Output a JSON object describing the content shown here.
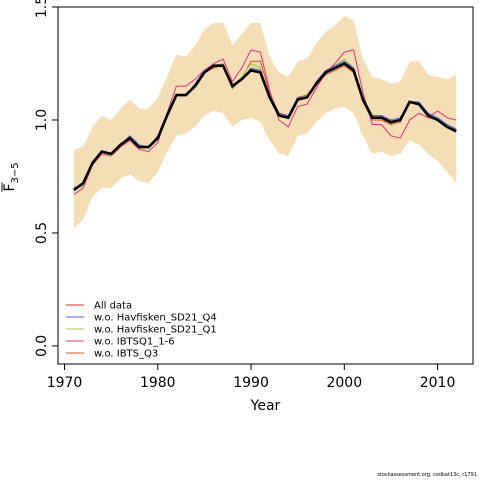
{
  "chart_data": {
    "type": "line",
    "xlabel": "Year",
    "ylabel_main": "F",
    "ylabel_sub": "3−5",
    "xlim": [
      1969.3,
      2013.8
    ],
    "ylim": [
      -0.08,
      1.5
    ],
    "xticks": [
      1970,
      1980,
      1990,
      2000,
      2010
    ],
    "yticks": [
      0.0,
      0.5,
      1.0,
      1.5
    ],
    "ytick_labels": [
      "0.0",
      "0.5",
      "1.0",
      "1.5"
    ],
    "x": [
      1971,
      1972,
      1973,
      1974,
      1975,
      1976,
      1977,
      1978,
      1979,
      1980,
      1981,
      1982,
      1983,
      1984,
      1985,
      1986,
      1987,
      1988,
      1989,
      1990,
      1991,
      1992,
      1993,
      1994,
      1995,
      1996,
      1997,
      1998,
      1999,
      2000,
      2001,
      2002,
      2003,
      2004,
      2005,
      2006,
      2007,
      2008,
      2009,
      2010,
      2011,
      2012
    ],
    "band": {
      "color": "#F5DEB3",
      "lower": [
        0.52,
        0.56,
        0.66,
        0.7,
        0.7,
        0.74,
        0.76,
        0.73,
        0.72,
        0.77,
        0.86,
        0.93,
        0.94,
        0.97,
        1.02,
        1.04,
        1.03,
        0.97,
        1.0,
        1.01,
        0.99,
        0.91,
        0.85,
        0.84,
        0.93,
        0.94,
        0.99,
        1.03,
        1.05,
        1.06,
        1.03,
        0.93,
        0.85,
        0.86,
        0.84,
        0.85,
        0.91,
        0.89,
        0.85,
        0.82,
        0.77,
        0.72
      ],
      "upper": [
        0.87,
        0.88,
        0.97,
        1.02,
        1.0,
        1.05,
        1.09,
        1.05,
        1.05,
        1.1,
        1.19,
        1.29,
        1.28,
        1.33,
        1.4,
        1.43,
        1.43,
        1.33,
        1.38,
        1.43,
        1.43,
        1.28,
        1.21,
        1.19,
        1.26,
        1.27,
        1.34,
        1.39,
        1.42,
        1.46,
        1.44,
        1.27,
        1.19,
        1.18,
        1.16,
        1.17,
        1.26,
        1.26,
        1.2,
        1.19,
        1.18,
        1.2
      ]
    },
    "main": {
      "color": "#000000",
      "values": [
        0.69,
        0.72,
        0.81,
        0.86,
        0.85,
        0.89,
        0.92,
        0.88,
        0.88,
        0.92,
        1.02,
        1.11,
        1.11,
        1.15,
        1.21,
        1.24,
        1.24,
        1.15,
        1.18,
        1.22,
        1.21,
        1.1,
        1.02,
        1.01,
        1.09,
        1.1,
        1.16,
        1.21,
        1.23,
        1.25,
        1.22,
        1.09,
        1.01,
        1.01,
        0.99,
        1.0,
        1.08,
        1.07,
        1.02,
        1.0,
        0.97,
        0.95
      ]
    },
    "series": [
      {
        "name": "All data",
        "color": "#E03030",
        "values": [
          0.69,
          0.72,
          0.81,
          0.86,
          0.85,
          0.89,
          0.92,
          0.88,
          0.88,
          0.92,
          1.02,
          1.11,
          1.11,
          1.15,
          1.21,
          1.24,
          1.24,
          1.15,
          1.18,
          1.22,
          1.21,
          1.1,
          1.02,
          1.01,
          1.09,
          1.1,
          1.16,
          1.21,
          1.23,
          1.25,
          1.22,
          1.09,
          1.01,
          1.01,
          0.99,
          1.0,
          1.08,
          1.07,
          1.02,
          1.0,
          0.97,
          0.95
        ]
      },
      {
        "name": "w.o. Havfisken_SD21_Q4",
        "color": "#5B5BE0",
        "values": [
          0.7,
          0.72,
          0.81,
          0.86,
          0.85,
          0.89,
          0.93,
          0.89,
          0.88,
          0.93,
          1.03,
          1.11,
          1.11,
          1.16,
          1.22,
          1.24,
          1.24,
          1.15,
          1.18,
          1.23,
          1.22,
          1.11,
          1.03,
          1.02,
          1.1,
          1.1,
          1.17,
          1.22,
          1.24,
          1.26,
          1.23,
          1.1,
          1.02,
          1.02,
          1.0,
          1.01,
          1.08,
          1.08,
          1.03,
          1.01,
          0.98,
          0.96
        ]
      },
      {
        "name": "w.o. Havfisken_SD21_Q1",
        "color": "#99CC33",
        "values": [
          0.69,
          0.71,
          0.81,
          0.86,
          0.84,
          0.89,
          0.92,
          0.88,
          0.88,
          0.92,
          1.02,
          1.11,
          1.11,
          1.15,
          1.21,
          1.24,
          1.25,
          1.15,
          1.19,
          1.25,
          1.23,
          1.1,
          1.02,
          1.01,
          1.09,
          1.1,
          1.16,
          1.21,
          1.24,
          1.27,
          1.23,
          1.09,
          1.01,
          1.01,
          0.99,
          1.0,
          1.08,
          1.07,
          1.02,
          1.01,
          0.98,
          0.96
        ]
      },
      {
        "name": "w.o. IBTSQ1_1-6",
        "color": "#E8307A",
        "values": [
          0.67,
          0.7,
          0.8,
          0.85,
          0.84,
          0.88,
          0.91,
          0.87,
          0.86,
          0.9,
          1.03,
          1.15,
          1.15,
          1.18,
          1.22,
          1.25,
          1.27,
          1.17,
          1.23,
          1.31,
          1.3,
          1.13,
          1.0,
          0.97,
          1.06,
          1.07,
          1.14,
          1.21,
          1.25,
          1.3,
          1.31,
          1.12,
          0.98,
          0.98,
          0.93,
          0.92,
          1.0,
          1.03,
          1.01,
          1.04,
          1.01,
          1.0
        ]
      },
      {
        "name": "w.o. IBTS_Q3",
        "color": "#E05020",
        "values": [
          0.69,
          0.72,
          0.81,
          0.86,
          0.85,
          0.89,
          0.92,
          0.88,
          0.88,
          0.92,
          1.02,
          1.11,
          1.11,
          1.15,
          1.21,
          1.23,
          1.24,
          1.14,
          1.18,
          1.26,
          1.26,
          1.12,
          1.03,
          1.01,
          1.1,
          1.11,
          1.16,
          1.2,
          1.22,
          1.24,
          1.21,
          1.08,
          1.0,
          1.0,
          0.98,
          0.99,
          1.08,
          1.07,
          1.01,
          1.0,
          0.97,
          0.96
        ]
      }
    ],
    "legend_position": "bottom-left"
  },
  "credit": "stockassessment.org, codkat13c, r1791"
}
